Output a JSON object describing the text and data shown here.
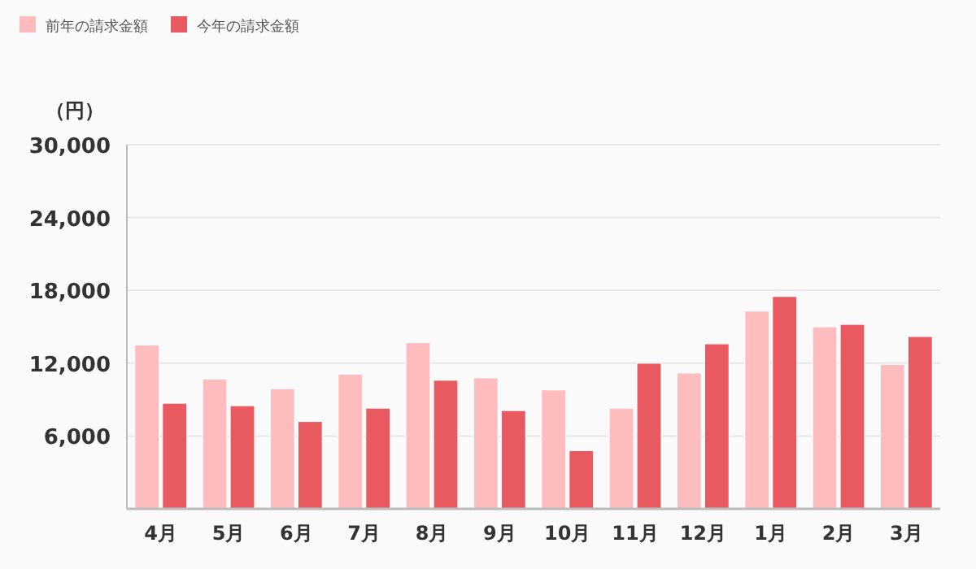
{
  "chart_data": {
    "type": "bar",
    "ylabel": "（円）",
    "categories": [
      "4月",
      "5月",
      "6月",
      "7月",
      "8月",
      "9月",
      "10月",
      "11月",
      "12月",
      "1月",
      "2月",
      "3月"
    ],
    "series": [
      {
        "name": "前年の請求金額",
        "color": "#ffbcbf",
        "values": [
          13500,
          10700,
          9900,
          11100,
          13700,
          10800,
          9800,
          8300,
          11200,
          16300,
          15000,
          11900
        ]
      },
      {
        "name": "今年の請求金額",
        "color": "#e85a60",
        "values": [
          8700,
          8500,
          7200,
          8300,
          10600,
          8100,
          4800,
          12000,
          13600,
          17500,
          15200,
          14200
        ]
      }
    ],
    "ylim": [
      0,
      30000
    ],
    "yticks": [
      {
        "value": 6000,
        "label": "6,000"
      },
      {
        "value": 12000,
        "label": "12,000"
      },
      {
        "value": 18000,
        "label": "18,000"
      },
      {
        "value": 24000,
        "label": "24,000"
      },
      {
        "value": 30000,
        "label": "30,000"
      }
    ],
    "grid": "y",
    "legend": "top left"
  }
}
